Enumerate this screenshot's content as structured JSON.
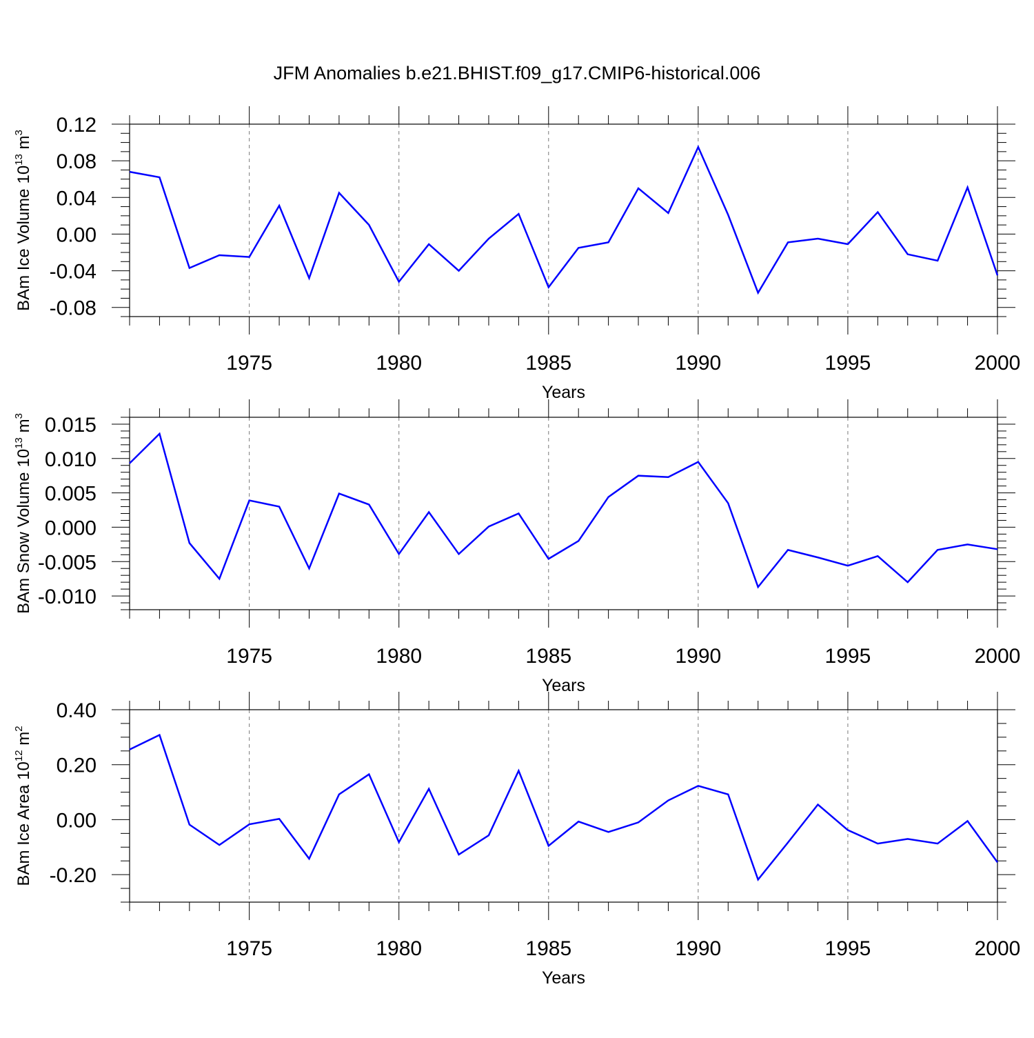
{
  "figure": {
    "title": "JFM Anomalies b.e21.BHIST.f09_g17.CMIP6-historical.006",
    "line_color": "#0000ff"
  },
  "chart_data": [
    {
      "type": "line",
      "xlabel": "Years",
      "ylabel": "BAm Ice Volume",
      "ylabel_unit_base": "10",
      "ylabel_unit_exp": "13",
      "ylabel_unit_suffix": " m",
      "ylabel_unit_sup2": "3",
      "xlim": [
        1971,
        2000
      ],
      "ylim": [
        -0.09,
        0.12
      ],
      "grid": "dashed vertical at labeled years",
      "xticks": [
        1975,
        1980,
        1985,
        1990,
        1995,
        2000
      ],
      "xtick_labels": [
        "1975",
        "1980",
        "1985",
        "1990",
        "1995",
        "2000"
      ],
      "yticks": [
        0.12,
        0.08,
        0.04,
        0.0,
        -0.04,
        -0.08
      ],
      "ytick_labels": [
        "0.12",
        "0.08",
        "0.04",
        "0.00",
        "-0.04",
        "-0.08"
      ],
      "yminor_step": 0.01,
      "x": [
        1971,
        1972,
        1973,
        1974,
        1975,
        1976,
        1977,
        1978,
        1979,
        1980,
        1981,
        1982,
        1983,
        1984,
        1985,
        1986,
        1987,
        1988,
        1989,
        1990,
        1991,
        1992,
        1993,
        1994,
        1995,
        1996,
        1997,
        1998,
        1999,
        2000
      ],
      "values": [
        0.068,
        0.062,
        -0.037,
        -0.023,
        -0.025,
        0.031,
        -0.048,
        0.045,
        0.01,
        -0.052,
        -0.011,
        -0.04,
        -0.005,
        0.022,
        -0.058,
        -0.015,
        -0.009,
        0.05,
        0.023,
        0.095,
        0.021,
        -0.064,
        -0.009,
        -0.005,
        -0.011,
        0.024,
        -0.022,
        -0.029,
        0.051,
        -0.045
      ]
    },
    {
      "type": "line",
      "xlabel": "Years",
      "ylabel": "BAm Snow Volume",
      "ylabel_unit_base": "10",
      "ylabel_unit_exp": "13",
      "ylabel_unit_suffix": " m",
      "ylabel_unit_sup2": "3",
      "xlim": [
        1971,
        2000
      ],
      "ylim": [
        -0.012,
        0.016
      ],
      "grid": "dashed vertical at labeled years",
      "xticks": [
        1975,
        1980,
        1985,
        1990,
        1995,
        2000
      ],
      "xtick_labels": [
        "1975",
        "1980",
        "1985",
        "1990",
        "1995",
        "2000"
      ],
      "yticks": [
        0.015,
        0.01,
        0.005,
        0.0,
        -0.005,
        -0.01
      ],
      "ytick_labels": [
        "0.015",
        "0.010",
        "0.005",
        "0.000",
        "-0.005",
        "-0.010"
      ],
      "yminor_step": 0.001,
      "x": [
        1971,
        1972,
        1973,
        1974,
        1975,
        1976,
        1977,
        1978,
        1979,
        1980,
        1981,
        1982,
        1983,
        1984,
        1985,
        1986,
        1987,
        1988,
        1989,
        1990,
        1991,
        1992,
        1993,
        1994,
        1995,
        1996,
        1997,
        1998,
        1999,
        2000
      ],
      "values": [
        0.0093,
        0.0136,
        -0.0023,
        -0.0075,
        0.0039,
        0.003,
        -0.006,
        0.0049,
        0.0033,
        -0.0039,
        0.0022,
        -0.0039,
        0.0001,
        0.002,
        -0.0046,
        -0.002,
        0.0044,
        0.0075,
        0.0073,
        0.0095,
        0.0035,
        -0.0087,
        -0.0033,
        -0.0044,
        -0.0056,
        -0.0042,
        -0.008,
        -0.0033,
        -0.0025,
        -0.0032
      ]
    },
    {
      "type": "line",
      "xlabel": "Years",
      "ylabel": "BAm Ice Area",
      "ylabel_unit_base": "10",
      "ylabel_unit_exp": "12",
      "ylabel_unit_suffix": " m",
      "ylabel_unit_sup2": "2",
      "xlim": [
        1971,
        2000
      ],
      "ylim": [
        -0.3,
        0.4
      ],
      "grid": "dashed vertical at labeled years",
      "xticks": [
        1975,
        1980,
        1985,
        1990,
        1995,
        2000
      ],
      "xtick_labels": [
        "1975",
        "1980",
        "1985",
        "1990",
        "1995",
        "2000"
      ],
      "yticks": [
        0.4,
        0.2,
        0.0,
        -0.2
      ],
      "ytick_labels": [
        "0.40",
        "0.20",
        "0.00",
        "-0.20"
      ],
      "yminor_step": 0.05,
      "x": [
        1971,
        1972,
        1973,
        1974,
        1975,
        1976,
        1977,
        1978,
        1979,
        1980,
        1981,
        1982,
        1983,
        1984,
        1985,
        1986,
        1987,
        1988,
        1989,
        1990,
        1991,
        1992,
        1993,
        1994,
        1995,
        1996,
        1997,
        1998,
        1999,
        2000
      ],
      "values": [
        0.255,
        0.308,
        -0.018,
        -0.092,
        -0.017,
        0.003,
        -0.142,
        0.092,
        0.165,
        -0.082,
        0.112,
        -0.127,
        -0.057,
        0.178,
        -0.095,
        -0.007,
        -0.045,
        -0.01,
        0.07,
        0.123,
        0.092,
        -0.218,
        -0.083,
        0.055,
        -0.038,
        -0.087,
        -0.07,
        -0.087,
        -0.005,
        -0.155
      ]
    }
  ]
}
